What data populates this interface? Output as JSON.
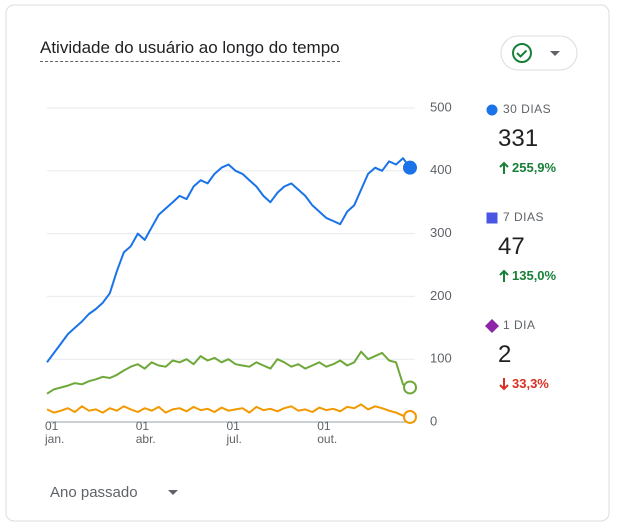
{
  "card": {
    "title": "Atividade do usuário ao longo do tempo",
    "footer": "Ano passado"
  },
  "chart_data": {
    "type": "line",
    "categories": [
      "01\njan.",
      null,
      null,
      null,
      null,
      null,
      null,
      null,
      null,
      null,
      null,
      null,
      null,
      "01\nabr.",
      null,
      null,
      null,
      null,
      null,
      null,
      null,
      null,
      null,
      null,
      null,
      null,
      "01\njul.",
      null,
      null,
      null,
      null,
      null,
      null,
      null,
      null,
      null,
      null,
      null,
      null,
      "01\nout.",
      null,
      null,
      null,
      null,
      null,
      null,
      null,
      null,
      null,
      null,
      null,
      null,
      null
    ],
    "series": [
      {
        "name": "30 DIAS",
        "color": "#1a73e8",
        "marker": "circle",
        "marker_color": "#1a73e8",
        "current": 331,
        "change": "255,9%",
        "direction": "up",
        "values": [
          95,
          110,
          125,
          140,
          150,
          160,
          172,
          180,
          190,
          205,
          240,
          270,
          280,
          300,
          290,
          310,
          330,
          340,
          350,
          360,
          355,
          375,
          385,
          380,
          395,
          405,
          410,
          400,
          395,
          385,
          375,
          360,
          350,
          365,
          375,
          380,
          370,
          360,
          345,
          335,
          325,
          320,
          315,
          335,
          345,
          370,
          395,
          405,
          400,
          415,
          410,
          420,
          405
        ]
      },
      {
        "name": "7 DIAS",
        "color": "#6fa83a",
        "marker": "square",
        "marker_color": "#4a56e2",
        "current": 47,
        "change": "135,0%",
        "direction": "up",
        "values": [
          45,
          52,
          55,
          58,
          62,
          60,
          65,
          68,
          72,
          70,
          75,
          82,
          88,
          92,
          85,
          95,
          90,
          88,
          98,
          95,
          100,
          92,
          105,
          98,
          102,
          95,
          100,
          92,
          90,
          88,
          95,
          90,
          85,
          100,
          95,
          88,
          92,
          85,
          90,
          95,
          88,
          92,
          98,
          90,
          95,
          112,
          100,
          105,
          110,
          98,
          95,
          60,
          55
        ]
      },
      {
        "name": "1 DIA",
        "color": "#f29900",
        "marker": "diamond",
        "marker_color": "#8e24aa",
        "current": 2,
        "change": "33,3%",
        "direction": "down",
        "values": [
          20,
          15,
          18,
          22,
          16,
          25,
          18,
          20,
          15,
          22,
          18,
          25,
          20,
          16,
          22,
          18,
          24,
          15,
          20,
          22,
          17,
          24,
          19,
          21,
          16,
          23,
          18,
          20,
          22,
          15,
          24,
          19,
          21,
          17,
          22,
          25,
          18,
          20,
          16,
          23,
          19,
          21,
          17,
          24,
          22,
          28,
          20,
          25,
          22,
          18,
          15,
          10,
          8
        ]
      }
    ],
    "ylim": [
      0,
      500
    ],
    "yticks": [
      0,
      100,
      200,
      300,
      400,
      500
    ],
    "grid": true
  }
}
